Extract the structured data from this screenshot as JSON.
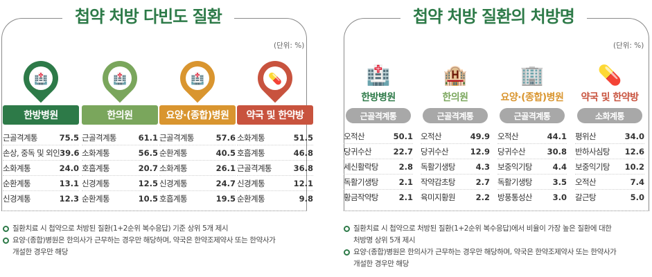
{
  "left": {
    "title": "첩약 처방 다빈도 질환",
    "unit": "(단위: %)",
    "columns": [
      {
        "label": "한방병원",
        "color": "#2d7a48",
        "icon": "hospital-pin-icon",
        "rows": [
          {
            "name": "근골격계통",
            "value": "75.5"
          },
          {
            "name": "손상, 중독 및 외인",
            "value": "39.6"
          },
          {
            "name": "소화계통",
            "value": "24.0"
          },
          {
            "name": "순환계통",
            "value": "13.1"
          },
          {
            "name": "신경계통",
            "value": "12.3"
          }
        ]
      },
      {
        "label": "한의원",
        "color": "#7aa65c",
        "icon": "clinic-pin-icon",
        "rows": [
          {
            "name": "근골격계통",
            "value": "61.1"
          },
          {
            "name": "소화계통",
            "value": "56.5"
          },
          {
            "name": "호흡계통",
            "value": "20.7"
          },
          {
            "name": "신경계통",
            "value": "12.5"
          },
          {
            "name": "순환계통",
            "value": "10.5"
          }
        ]
      },
      {
        "label": "요양·(종합)병원",
        "color": "#d9952f",
        "icon": "care-hospital-pin-icon",
        "rows": [
          {
            "name": "근골격계통",
            "value": "57.6"
          },
          {
            "name": "순환계통",
            "value": "40.5"
          },
          {
            "name": "소화계통",
            "value": "26.1"
          },
          {
            "name": "신경계통",
            "value": "24.7"
          },
          {
            "name": "호흡계통",
            "value": "19.5"
          }
        ]
      },
      {
        "label": "약국 및 한약방",
        "color": "#c8533e",
        "icon": "pharmacy-pin-icon",
        "rows": [
          {
            "name": "소화계통",
            "value": "51.5"
          },
          {
            "name": "호흡계통",
            "value": "46.8"
          },
          {
            "name": "근골격계통",
            "value": "36.8"
          },
          {
            "name": "신경계통",
            "value": "12.1"
          },
          {
            "name": "순환계통",
            "value": "9.8"
          }
        ]
      }
    ],
    "notes": [
      "질환치료 시 첩약으로 처방된 질환(1+2순위 복수응답) 기준 상위 5개 제시",
      "요양·(종합)병원은 한의사가 근무하는 경우만 해당하며, 약국은 한약조제약사 또는 한약사가",
      "개설한 경우만 해당"
    ]
  },
  "right": {
    "title": "첩약 처방 질환의 처방명",
    "unit": "(단위: %)",
    "columns": [
      {
        "label": "한방병원",
        "color": "#2d7a48",
        "category": "근골격계통",
        "icon": "hospital-building-icon",
        "rows": [
          {
            "name": "오적산",
            "value": "50.1"
          },
          {
            "name": "당귀수산",
            "value": "22.7"
          },
          {
            "name": "세신활락탕",
            "value": "2.8"
          },
          {
            "name": "독활기생탕",
            "value": "2.1"
          },
          {
            "name": "황금작약탕",
            "value": "2.1"
          }
        ]
      },
      {
        "label": "한의원",
        "color": "#7aa65c",
        "category": "근골격계통",
        "icon": "clinic-building-icon",
        "rows": [
          {
            "name": "오적산",
            "value": "49.9"
          },
          {
            "name": "당귀수산",
            "value": "12.9"
          },
          {
            "name": "독활기생탕",
            "value": "4.3"
          },
          {
            "name": "작약감초탕",
            "value": "2.7"
          },
          {
            "name": "육미지황원",
            "value": "2.2"
          }
        ]
      },
      {
        "label": "요양·(종합)병원",
        "color": "#d9952f",
        "category": "근골격계통",
        "icon": "care-building-icon",
        "rows": [
          {
            "name": "오적산",
            "value": "44.1"
          },
          {
            "name": "당귀수산",
            "value": "30.8"
          },
          {
            "name": "보중익기탕",
            "value": "4.4"
          },
          {
            "name": "독활기생탕",
            "value": "3.5"
          },
          {
            "name": "방풍통성산",
            "value": "3.0"
          }
        ]
      },
      {
        "label": "약국 및 한약방",
        "color": "#c8533e",
        "category": "소화계통",
        "icon": "pills-icon",
        "rows": [
          {
            "name": "평위산",
            "value": "34.0"
          },
          {
            "name": "반하사심탕",
            "value": "12.6"
          },
          {
            "name": "보중익기탕",
            "value": "10.2"
          },
          {
            "name": "오적산",
            "value": "7.4"
          },
          {
            "name": "갈근탕",
            "value": "5.0"
          }
        ]
      }
    ],
    "notes": [
      "질환치료 시 첩약으로 처방된 질환(1+2순위 복수응답)에서 비율이 가장 높은 질환에 대한",
      "처방명 상위 5개 제시",
      "요양·(종합)병원은 한의사가 근무하는 경우만 해당하며, 약국은 한약조제약사 또는 한약사가",
      "개설한 경우만 해당"
    ]
  }
}
